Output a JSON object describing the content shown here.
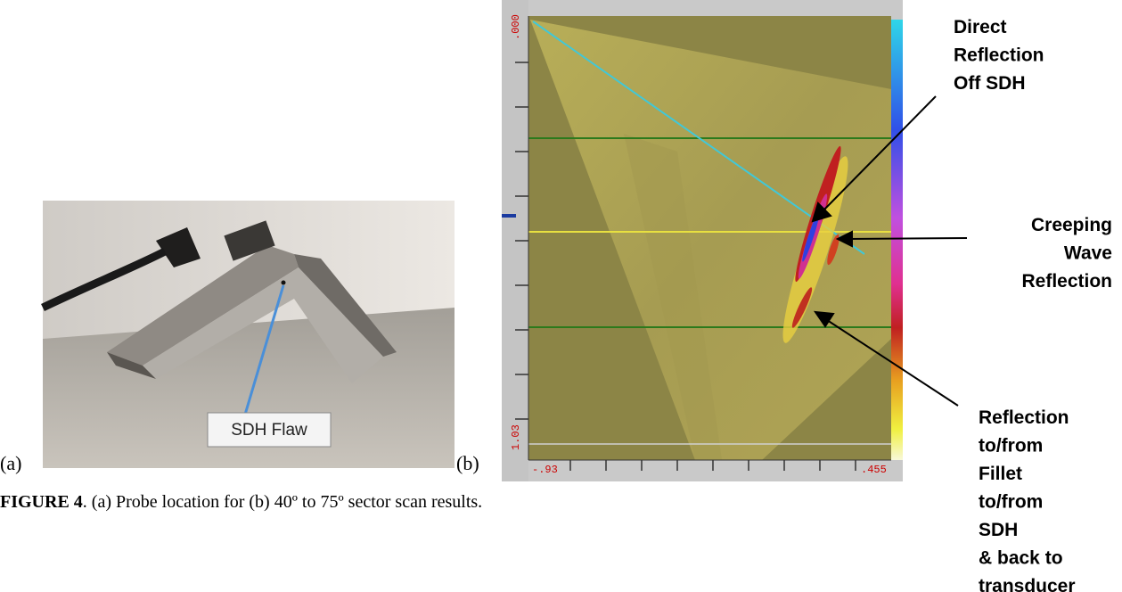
{
  "figure": {
    "panel_a": {
      "label": "(a)",
      "callout": "SDH Flaw"
    },
    "panel_b": {
      "label": "(b)",
      "screen_labels": {
        "top_left": ".000",
        "bottom_left": "1.03",
        "x_start": "-.93",
        "x_end": ".455"
      }
    },
    "annotations": [
      {
        "lines": [
          "Direct",
          "Reflection",
          "Off SDH"
        ]
      },
      {
        "lines": [
          "Creeping",
          "Wave",
          "Reflection"
        ]
      },
      {
        "lines": [
          "Reflection",
          "to/from",
          "Fillet",
          "to/from",
          "SDH",
          "& back to",
          "transducer"
        ]
      }
    ],
    "caption": {
      "label": "FIGURE 4",
      "text": ". (a) Probe location for (b) 40º to 75º sector scan results."
    }
  }
}
